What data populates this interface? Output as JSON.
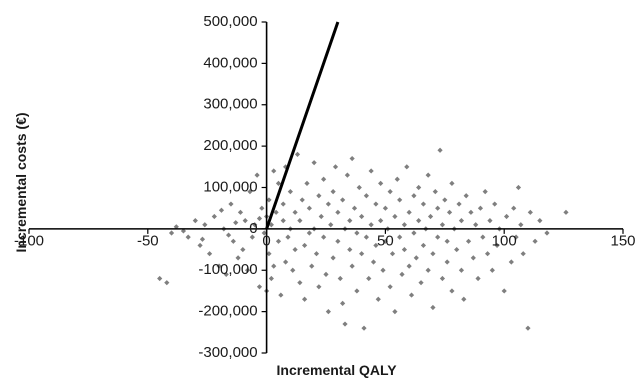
{
  "chart_data": {
    "type": "scatter",
    "xlabel": "Incremental QALY",
    "ylabel": "Incremental costs (€)",
    "xlim": [
      -100,
      150
    ],
    "ylim": [
      -300000,
      500000
    ],
    "x_ticks": [
      -100,
      -50,
      0,
      50,
      100,
      150
    ],
    "x_tick_labels": [
      "-100",
      "-50",
      "0",
      "50",
      "100",
      "150"
    ],
    "y_ticks": [
      -300000,
      -200000,
      -100000,
      0,
      100000,
      200000,
      300000,
      400000,
      500000
    ],
    "y_tick_labels": [
      "-300,000",
      "-200,000",
      "-100,000",
      "0",
      "100,000",
      "200,000",
      "300,000",
      "400,000",
      "500,000"
    ],
    "grid": false,
    "point_color": "#7f7f7f",
    "line_color": "#000000",
    "threshold_line": {
      "x": [
        0,
        30
      ],
      "y": [
        0,
        500000
      ]
    },
    "series": [
      {
        "points": [
          [
            -45,
            -120000
          ],
          [
            -42,
            -130000
          ],
          [
            -40,
            -10000
          ],
          [
            -38,
            5000
          ],
          [
            -33,
            -20000
          ],
          [
            -30,
            20000
          ],
          [
            -28,
            -40000
          ],
          [
            -26,
            10000
          ],
          [
            -24,
            -60000
          ],
          [
            -22,
            30000
          ],
          [
            -20,
            -90000
          ],
          [
            -18,
            0
          ],
          [
            -17,
            -110000
          ],
          [
            -15,
            60000
          ],
          [
            -14,
            -30000
          ],
          [
            -13,
            15000
          ],
          [
            -12,
            -70000
          ],
          [
            -11,
            40000
          ],
          [
            -10,
            -50000
          ],
          [
            -9,
            20000
          ],
          [
            -8,
            -100000
          ],
          [
            -7,
            90000
          ],
          [
            -6,
            -20000
          ],
          [
            -5,
            10000
          ],
          [
            -4,
            130000
          ],
          [
            -3,
            -140000
          ],
          [
            -2,
            50000
          ],
          [
            -1,
            -10000
          ],
          [
            0,
            -150000
          ],
          [
            0,
            30000
          ],
          [
            1,
            70000
          ],
          [
            1,
            -60000
          ],
          [
            2,
            -120000
          ],
          [
            2,
            10000
          ],
          [
            3,
            140000
          ],
          [
            3,
            -90000
          ],
          [
            4,
            40000
          ],
          [
            5,
            -30000
          ],
          [
            5,
            110000
          ],
          [
            6,
            -160000
          ],
          [
            7,
            20000
          ],
          [
            7,
            60000
          ],
          [
            8,
            -80000
          ],
          [
            8,
            150000
          ],
          [
            9,
            -20000
          ],
          [
            10,
            0
          ],
          [
            10,
            90000
          ],
          [
            11,
            -100000
          ],
          [
            12,
            40000
          ],
          [
            12,
            -50000
          ],
          [
            13,
            180000
          ],
          [
            14,
            -130000
          ],
          [
            14,
            20000
          ],
          [
            15,
            70000
          ],
          [
            16,
            -40000
          ],
          [
            16,
            -170000
          ],
          [
            17,
            110000
          ],
          [
            18,
            -10000
          ],
          [
            18,
            50000
          ],
          [
            19,
            -90000
          ],
          [
            20,
            160000
          ],
          [
            20,
            0
          ],
          [
            21,
            -60000
          ],
          [
            22,
            80000
          ],
          [
            22,
            -140000
          ],
          [
            23,
            30000
          ],
          [
            24,
            -20000
          ],
          [
            24,
            120000
          ],
          [
            25,
            -110000
          ],
          [
            26,
            60000
          ],
          [
            26,
            -200000
          ],
          [
            27,
            10000
          ],
          [
            28,
            -70000
          ],
          [
            28,
            90000
          ],
          [
            29,
            150000
          ],
          [
            30,
            -30000
          ],
          [
            30,
            40000
          ],
          [
            31,
            -120000
          ],
          [
            32,
            -180000
          ],
          [
            32,
            70000
          ],
          [
            33,
            0
          ],
          [
            33,
            -230000
          ],
          [
            34,
            130000
          ],
          [
            35,
            -50000
          ],
          [
            35,
            20000
          ],
          [
            36,
            -90000
          ],
          [
            36,
            170000
          ],
          [
            37,
            50000
          ],
          [
            38,
            -150000
          ],
          [
            38,
            -10000
          ],
          [
            39,
            100000
          ],
          [
            40,
            -60000
          ],
          [
            40,
            30000
          ],
          [
            41,
            -240000
          ],
          [
            42,
            80000
          ],
          [
            42,
            -20000
          ],
          [
            43,
            -120000
          ],
          [
            44,
            10000
          ],
          [
            44,
            140000
          ],
          [
            45,
            -80000
          ],
          [
            46,
            60000
          ],
          [
            46,
            -40000
          ],
          [
            47,
            -170000
          ],
          [
            48,
            20000
          ],
          [
            48,
            110000
          ],
          [
            49,
            -100000
          ],
          [
            50,
            -30000
          ],
          [
            50,
            50000
          ],
          [
            51,
            0
          ],
          [
            52,
            -140000
          ],
          [
            52,
            90000
          ],
          [
            53,
            -60000
          ],
          [
            54,
            30000
          ],
          [
            54,
            -200000
          ],
          [
            55,
            120000
          ],
          [
            56,
            -20000
          ],
          [
            56,
            70000
          ],
          [
            57,
            -110000
          ],
          [
            58,
            10000
          ],
          [
            58,
            -50000
          ],
          [
            59,
            150000
          ],
          [
            60,
            -90000
          ],
          [
            60,
            40000
          ],
          [
            61,
            -160000
          ],
          [
            62,
            80000
          ],
          [
            62,
            -10000
          ],
          [
            63,
            -70000
          ],
          [
            64,
            20000
          ],
          [
            64,
            100000
          ],
          [
            65,
            -130000
          ],
          [
            66,
            60000
          ],
          [
            66,
            -40000
          ],
          [
            67,
            0
          ],
          [
            68,
            -100000
          ],
          [
            68,
            130000
          ],
          [
            69,
            30000
          ],
          [
            70,
            -60000
          ],
          [
            70,
            -190000
          ],
          [
            71,
            90000
          ],
          [
            72,
            -20000
          ],
          [
            72,
            50000
          ],
          [
            73,
            190000
          ],
          [
            74,
            -120000
          ],
          [
            74,
            10000
          ],
          [
            75,
            70000
          ],
          [
            76,
            -80000
          ],
          [
            76,
            -30000
          ],
          [
            77,
            40000
          ],
          [
            78,
            -150000
          ],
          [
            78,
            110000
          ],
          [
            79,
            0
          ],
          [
            80,
            -50000
          ],
          [
            81,
            60000
          ],
          [
            82,
            -100000
          ],
          [
            82,
            20000
          ],
          [
            83,
            -170000
          ],
          [
            84,
            80000
          ],
          [
            85,
            -30000
          ],
          [
            86,
            40000
          ],
          [
            87,
            -70000
          ],
          [
            88,
            10000
          ],
          [
            89,
            -120000
          ],
          [
            90,
            50000
          ],
          [
            91,
            -20000
          ],
          [
            92,
            90000
          ],
          [
            93,
            -60000
          ],
          [
            94,
            20000
          ],
          [
            95,
            -100000
          ],
          [
            96,
            60000
          ],
          [
            97,
            -40000
          ],
          [
            98,
            0
          ],
          [
            100,
            -150000
          ],
          [
            101,
            30000
          ],
          [
            103,
            -80000
          ],
          [
            104,
            50000
          ],
          [
            105,
            -20000
          ],
          [
            106,
            100000
          ],
          [
            107,
            10000
          ],
          [
            108,
            -60000
          ],
          [
            110,
            -240000
          ],
          [
            111,
            40000
          ],
          [
            113,
            -30000
          ],
          [
            115,
            20000
          ],
          [
            118,
            -10000
          ],
          [
            126,
            40000
          ],
          [
            -35,
            -5000
          ],
          [
            -27,
            -25000
          ],
          [
            -19,
            45000
          ],
          [
            -16,
            -15000
          ],
          [
            -3,
            25000
          ]
        ]
      }
    ]
  }
}
